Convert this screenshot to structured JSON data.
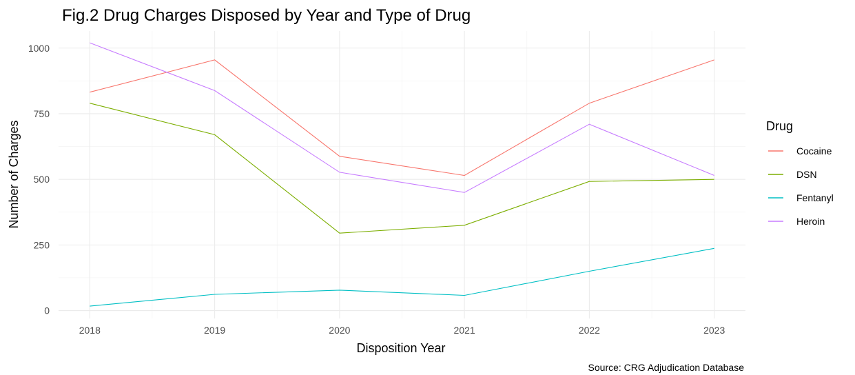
{
  "chart_data": {
    "type": "line",
    "title": "Fig.2 Drug Charges Disposed by Year and Type of Drug",
    "xlabel": "Disposition Year",
    "ylabel": "Number of Charges",
    "caption": "Source: CRG Adjudication Database",
    "legend_title": "Drug",
    "legend_position": "right",
    "grid": true,
    "x": [
      2018,
      2019,
      2020,
      2021,
      2022,
      2023
    ],
    "x_ticks": [
      "2018",
      "2019",
      "2020",
      "2021",
      "2022",
      "2023"
    ],
    "y_ticks": [
      "0",
      "250",
      "500",
      "750",
      "1000"
    ],
    "ylim": [
      -30,
      1065
    ],
    "series": [
      {
        "name": "Cocaine",
        "color": "#F8766D",
        "values": [
          832,
          955,
          588,
          515,
          790,
          955
        ]
      },
      {
        "name": "DSN",
        "color": "#7CAE00",
        "values": [
          790,
          670,
          295,
          325,
          492,
          500
        ]
      },
      {
        "name": "Fentanyl",
        "color": "#00BFC4",
        "values": [
          17,
          62,
          78,
          58,
          150,
          237
        ]
      },
      {
        "name": "Heroin",
        "color": "#C77CFF",
        "values": [
          1020,
          838,
          527,
          450,
          710,
          515
        ]
      }
    ]
  }
}
